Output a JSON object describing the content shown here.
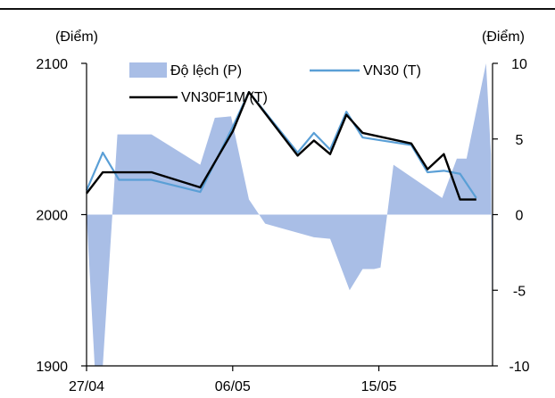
{
  "chart_data": {
    "type": "line",
    "left_axis": {
      "unit_label": "(Điểm)",
      "ylim": [
        1900,
        2100
      ],
      "ticks": [
        1900,
        2000,
        2100
      ]
    },
    "right_axis": {
      "unit_label": "(Điểm)",
      "ylim": [
        -10,
        10
      ],
      "ticks": [
        -10,
        -5,
        0,
        5,
        10
      ]
    },
    "x_tick_labels": [
      {
        "label": "27/04",
        "x": 0
      },
      {
        "label": "06/05",
        "x": 9
      },
      {
        "label": "15/05",
        "x": 18
      }
    ],
    "x_range": [
      0,
      25
    ],
    "series": [
      {
        "name": "Độ lệch (P)",
        "kind": "area",
        "axis": "right",
        "color": "#a9bee6",
        "points": [
          [
            0,
            0
          ],
          [
            0.5,
            -10
          ],
          [
            1,
            -10
          ],
          [
            1.9,
            5.3
          ],
          [
            4,
            5.3
          ],
          [
            7,
            3.3
          ],
          [
            7.9,
            6.4
          ],
          [
            8.9,
            6.5
          ],
          [
            10,
            1
          ],
          [
            11,
            -0.6
          ],
          [
            14,
            -1.5
          ],
          [
            15,
            -1.6
          ],
          [
            16.2,
            -5
          ],
          [
            17,
            -3.6
          ],
          [
            17.7,
            -3.6
          ],
          [
            18.1,
            -3.5
          ],
          [
            18.9,
            3.3
          ],
          [
            21.9,
            1.1
          ],
          [
            22.8,
            3.7
          ],
          [
            23.4,
            3.7
          ],
          [
            24.6,
            10.2
          ],
          [
            24.9,
            4
          ],
          [
            25.8,
            -10
          ],
          [
            26.5,
            -10
          ],
          [
            27,
            0.8
          ]
        ]
      },
      {
        "name": "VN30 (T)",
        "kind": "line",
        "axis": "left",
        "color": "#5a9fd6",
        "points": [
          [
            0,
            2016
          ],
          [
            1,
            2041
          ],
          [
            2,
            2023
          ],
          [
            4,
            2023
          ],
          [
            7,
            2015
          ],
          [
            9,
            2058
          ],
          [
            10,
            2081
          ],
          [
            13,
            2041
          ],
          [
            14,
            2054
          ],
          [
            15,
            2043
          ],
          [
            16,
            2068
          ],
          [
            17,
            2051
          ],
          [
            20,
            2046
          ],
          [
            21,
            2028
          ],
          [
            22,
            2029
          ],
          [
            23,
            2027
          ],
          [
            24,
            2011
          ]
        ]
      },
      {
        "name": "VN30F1M (T)",
        "kind": "line",
        "axis": "left",
        "color": "#000000",
        "points": [
          [
            0,
            2014
          ],
          [
            1,
            2028
          ],
          [
            2,
            2028
          ],
          [
            4,
            2028
          ],
          [
            7,
            2018
          ],
          [
            9,
            2055
          ],
          [
            10,
            2081
          ],
          [
            13,
            2039
          ],
          [
            14,
            2049
          ],
          [
            15,
            2040
          ],
          [
            16,
            2066
          ],
          [
            17,
            2054
          ],
          [
            20,
            2047
          ],
          [
            21,
            2030
          ],
          [
            22,
            2040
          ],
          [
            23,
            2010
          ],
          [
            24,
            2010
          ]
        ]
      }
    ],
    "legend": "top"
  }
}
